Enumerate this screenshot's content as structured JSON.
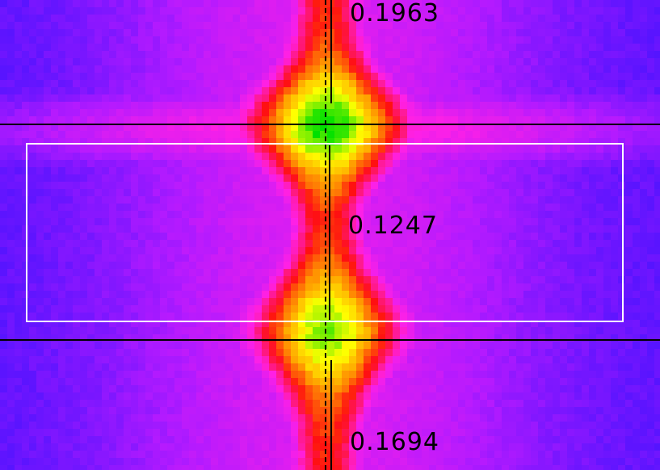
{
  "colormap": {
    "stops": [
      "#3a12ff",
      "#b31aff",
      "#ff20e6",
      "#ff1010",
      "#ffa000",
      "#ffff00",
      "#00e000"
    ]
  },
  "measurements": {
    "top_value": "0.1963",
    "middle_value": "0.1247",
    "bottom_value": "0.1694"
  }
}
